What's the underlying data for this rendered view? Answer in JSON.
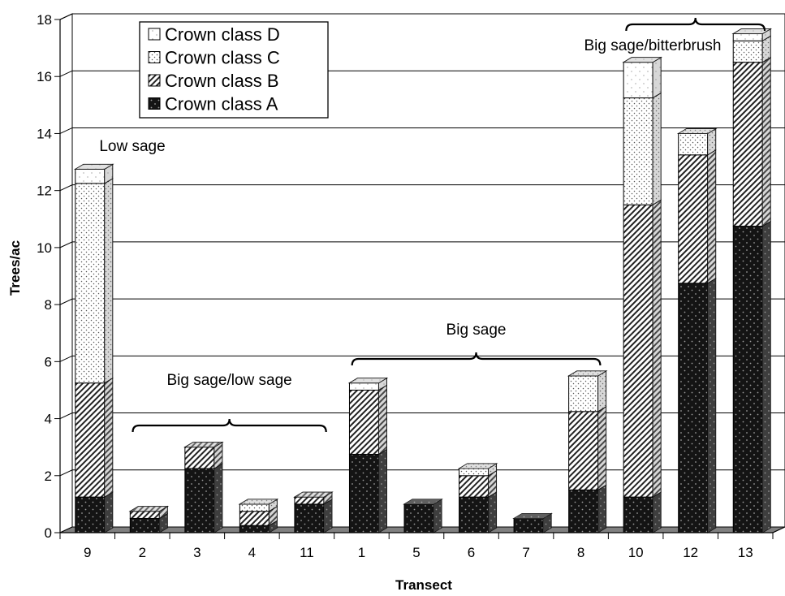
{
  "chart_data": {
    "type": "bar",
    "stacked": true,
    "three_d": true,
    "categories": [
      "9",
      "2",
      "3",
      "4",
      "11",
      "1",
      "5",
      "6",
      "7",
      "8",
      "10",
      "12",
      "13"
    ],
    "series": [
      {
        "name": "Crown class A",
        "pattern": "dark-dotted",
        "values": [
          1.25,
          0.5,
          2.25,
          0.25,
          1.0,
          2.75,
          1.0,
          1.25,
          0.5,
          1.5,
          1.25,
          8.75,
          10.75
        ]
      },
      {
        "name": "Crown class B",
        "pattern": "hatched",
        "values": [
          4.0,
          0.25,
          0.75,
          0.5,
          0.25,
          2.25,
          0.0,
          0.75,
          0.0,
          2.75,
          10.25,
          4.5,
          5.75
        ]
      },
      {
        "name": "Crown class C",
        "pattern": "light-dotted",
        "values": [
          7.0,
          0.0,
          0.0,
          0.25,
          0.0,
          0.0,
          0.0,
          0.25,
          0.0,
          1.25,
          3.75,
          0.75,
          0.75
        ]
      },
      {
        "name": "Crown class D",
        "pattern": "white",
        "values": [
          0.5,
          0.0,
          0.0,
          0.0,
          0.0,
          0.25,
          0.0,
          0.0,
          0.0,
          0.0,
          1.25,
          0.0,
          0.25
        ]
      }
    ],
    "xlabel": "Transect",
    "ylabel": "Trees/ac",
    "ylim": [
      0,
      18
    ],
    "yticks": [
      "0",
      "2",
      "4",
      "6",
      "8",
      "10",
      "12",
      "14",
      "16",
      "18"
    ],
    "grid": true,
    "legend": "top-left",
    "annotations": [
      {
        "text": "Low sage",
        "categories": [
          "9"
        ]
      },
      {
        "text": "Big sage/low sage",
        "categories": [
          "2",
          "3",
          "4",
          "11"
        ]
      },
      {
        "text": "Big sage",
        "categories": [
          "1",
          "5",
          "6",
          "7",
          "8"
        ]
      },
      {
        "text": "Big sage/bitterbrush",
        "categories": [
          "10",
          "12",
          "13"
        ]
      }
    ],
    "colors": {
      "class_a": "#1a1a1a",
      "class_b": "#ffffff",
      "class_c": "#ffffff",
      "class_d": "#ffffff",
      "floor": "#808080",
      "side": "#a0a0a0"
    }
  }
}
